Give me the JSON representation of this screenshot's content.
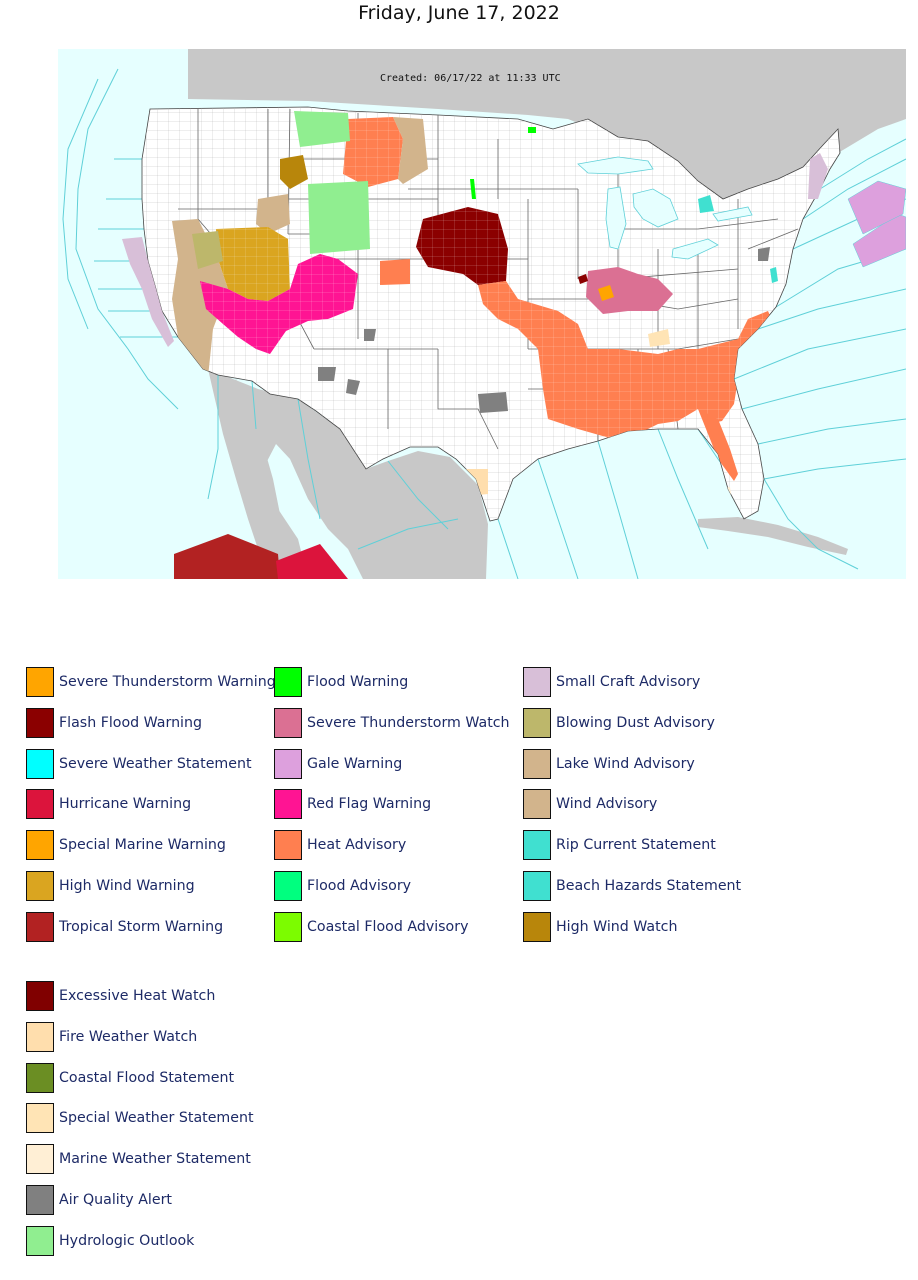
{
  "title": "Friday, June 17, 2022",
  "map": {
    "created_label": "Created: 06/17/22 at 11:33 UTC",
    "colors": {
      "ocean": "#e6ffff",
      "coast_zone_lines": "#5fd0d8",
      "land": "#ffffff",
      "foreign_land": "#c8c8c8",
      "county_lines": "#b0b0b0",
      "state_lines": "#555555"
    }
  },
  "legend": {
    "col1": [
      {
        "label": "Severe Thunderstorm Warning",
        "color": "#ffa500"
      },
      {
        "label": "Flash Flood Warning",
        "color": "#8b0000"
      },
      {
        "label": "Severe Weather Statement",
        "color": "#00ffff"
      },
      {
        "label": "Hurricane Warning",
        "color": "#dc143c"
      },
      {
        "label": "Special Marine Warning",
        "color": "#ffa500"
      },
      {
        "label": "High Wind Warning",
        "color": "#daa520"
      },
      {
        "label": "Tropical Storm Warning",
        "color": "#b22222"
      }
    ],
    "col2": [
      {
        "label": "Flood Warning",
        "color": "#00ff00"
      },
      {
        "label": "Severe Thunderstorm Watch",
        "color": "#db7093"
      },
      {
        "label": "Gale Warning",
        "color": "#dda0dd"
      },
      {
        "label": "Red Flag Warning",
        "color": "#ff1493"
      },
      {
        "label": "Heat Advisory",
        "color": "#ff7f50"
      },
      {
        "label": "Flood Advisory",
        "color": "#00ff7f"
      },
      {
        "label": "Coastal Flood Advisory",
        "color": "#7cfc00"
      }
    ],
    "col3": [
      {
        "label": "Small Craft Advisory",
        "color": "#d8bfd8"
      },
      {
        "label": "Blowing Dust Advisory",
        "color": "#bdb76b"
      },
      {
        "label": "Lake Wind Advisory",
        "color": "#d2b48c"
      },
      {
        "label": "Wind Advisory",
        "color": "#d2b48c"
      },
      {
        "label": "Rip Current Statement",
        "color": "#40e0d0"
      },
      {
        "label": "Beach Hazards Statement",
        "color": "#40e0d0"
      },
      {
        "label": "High Wind Watch",
        "color": "#b8860b"
      }
    ],
    "col4": [
      {
        "label": "Excessive Heat Watch",
        "color": "#800000"
      },
      {
        "label": "Fire Weather Watch",
        "color": "#ffdead"
      },
      {
        "label": "Coastal Flood Statement",
        "color": "#6b8e23"
      },
      {
        "label": "Special Weather Statement",
        "color": "#ffe4b5"
      },
      {
        "label": "Marine Weather Statement",
        "color": "#ffefd5"
      },
      {
        "label": "Air Quality Alert",
        "color": "#808080"
      },
      {
        "label": "Hydrologic Outlook",
        "color": "#90ee90"
      }
    ]
  }
}
